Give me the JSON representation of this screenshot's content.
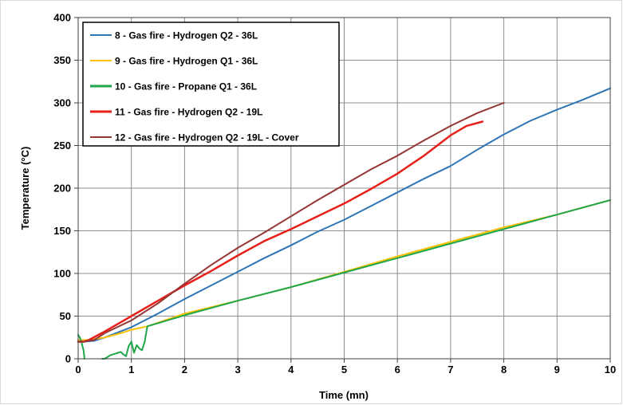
{
  "chart_data": {
    "type": "line",
    "xlabel": "Time (mn)",
    "ylabel": "Temperature (°C)",
    "xlim": [
      0,
      10
    ],
    "ylim": [
      0,
      400
    ],
    "x_ticks": [
      "0",
      "1",
      "2",
      "3",
      "4",
      "5",
      "6",
      "7",
      "8",
      "9",
      "10"
    ],
    "y_ticks": [
      "0",
      "50",
      "100",
      "150",
      "200",
      "250",
      "300",
      "350",
      "400"
    ],
    "grid": true,
    "legend_position": "top-left",
    "series": [
      {
        "name": "8 - Gas fire - Hydrogen Q2 - 36L",
        "color": "#2E75B6",
        "x": [
          0,
          0.1,
          0.3,
          0.5,
          1,
          1.5,
          2,
          2.5,
          3,
          3.5,
          4,
          4.5,
          5,
          5.5,
          6,
          6.5,
          7,
          7.5,
          8,
          8.5,
          9,
          9.5,
          10
        ],
        "y": [
          20,
          20,
          21,
          25,
          37,
          53,
          70,
          86,
          102,
          118,
          133,
          149,
          163,
          179,
          195,
          211,
          226,
          245,
          263,
          279,
          292,
          304,
          317
        ]
      },
      {
        "name": "9 - Gas fire - Hydrogen Q1 - 36L",
        "color": "#FFC000",
        "x": [
          0,
          0.2,
          0.5,
          0.8,
          1,
          1.3,
          2,
          3,
          4,
          5,
          6,
          7,
          8,
          9,
          10
        ],
        "y": [
          22,
          22,
          25,
          30,
          34,
          38,
          53,
          68,
          84,
          102,
          120,
          137,
          154,
          169,
          186
        ]
      },
      {
        "name": "10 - Gas fire - Propane Q1 - 36L",
        "color": "#1FA64A",
        "x": [
          0,
          0.03,
          0.06,
          0.1,
          0.12,
          0.15,
          0.2,
          0.25,
          0.3,
          0.35,
          0.4,
          0.45,
          0.5,
          0.55,
          0.6,
          0.65,
          0.7,
          0.75,
          0.8,
          0.85,
          0.9,
          0.95,
          1.0,
          1.05,
          1.1,
          1.15,
          1.2,
          1.25,
          1.3,
          2,
          3,
          4,
          5,
          6,
          7,
          8,
          9,
          10
        ],
        "y": [
          28,
          25,
          20,
          10,
          0,
          null,
          null,
          null,
          null,
          null,
          null,
          0,
          0,
          2,
          4,
          5,
          6,
          7,
          8,
          5,
          3,
          15,
          20,
          7,
          16,
          12,
          10,
          20,
          38,
          51,
          68,
          84,
          101,
          118,
          135,
          152,
          169,
          186
        ]
      },
      {
        "name": "11 - Gas fire - Hydrogen Q2 - 19L",
        "color": "#E8201A",
        "x": [
          0,
          0.1,
          0.2,
          0.5,
          1,
          1.5,
          2,
          2.5,
          3,
          3.5,
          4,
          4.5,
          5,
          5.5,
          6,
          6.5,
          7,
          7.3,
          7.6
        ],
        "y": [
          20,
          20,
          22,
          32,
          50,
          68,
          86,
          103,
          121,
          138,
          152,
          167,
          182,
          199,
          217,
          238,
          262,
          273,
          278
        ]
      },
      {
        "name": "12 - Gas fire - Hydrogen Q2 - 19L - Cover",
        "color": "#943634",
        "x": [
          0,
          0.1,
          0.3,
          0.5,
          1,
          1.5,
          2,
          2.5,
          3,
          3.5,
          4,
          4.5,
          5,
          5.5,
          6,
          6.5,
          7,
          7.5,
          8
        ],
        "y": [
          20,
          20,
          22,
          30,
          45,
          65,
          88,
          110,
          130,
          148,
          167,
          186,
          204,
          222,
          238,
          256,
          273,
          288,
          300
        ]
      }
    ]
  }
}
